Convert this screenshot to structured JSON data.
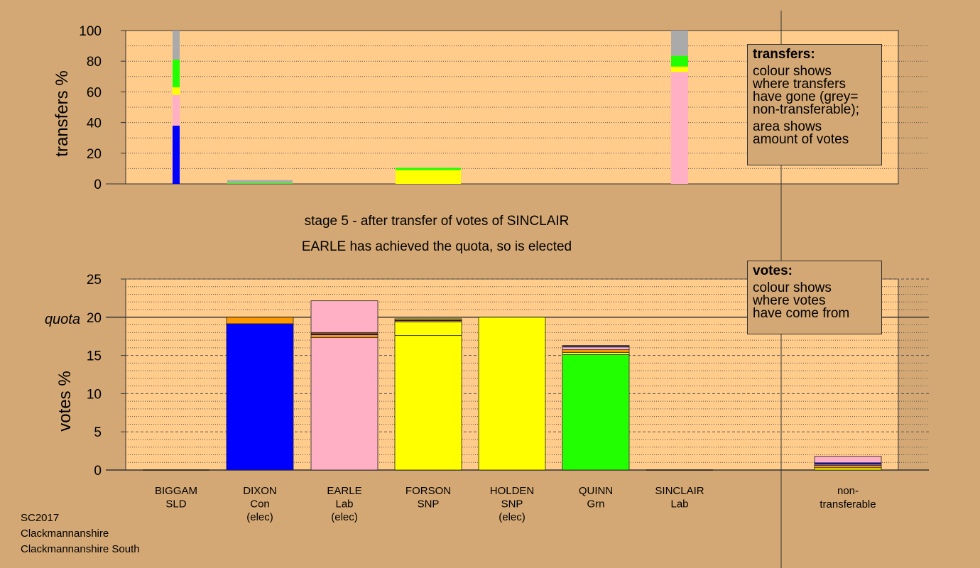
{
  "chart_data": [
    {
      "type": "bar",
      "stacked": true,
      "ylabel": "transfers %",
      "ylim": [
        0,
        100
      ],
      "yticks": [
        0,
        20,
        40,
        60,
        80,
        100
      ],
      "transfers": [
        {
          "candidate": "BIGGAM",
          "segments": [
            {
              "color": "#0000ff",
              "value": 38
            },
            {
              "color": "#ffb0c4",
              "value": 20
            },
            {
              "color": "#ffff00",
              "value": 5
            },
            {
              "color": "#22ff00",
              "value": 18
            },
            {
              "color": "#aaaaaa",
              "value": 19
            }
          ]
        },
        {
          "candidate": "DIXON",
          "segments": [
            {
              "color": "#22ff00",
              "value": 0.5
            },
            {
              "color": "#aaaaaa",
              "value": 2
            }
          ]
        },
        {
          "candidate": "FORSON",
          "segments": [
            {
              "color": "#ffff00",
              "value": 9
            },
            {
              "color": "#22ff00",
              "value": 1.5
            }
          ]
        },
        {
          "candidate": "SINCLAIR",
          "segments": [
            {
              "color": "#ffb0c4",
              "value": 73
            },
            {
              "color": "#ffff00",
              "value": 3.5
            },
            {
              "color": "#22ff00",
              "value": 7
            },
            {
              "color": "#aaaaaa",
              "value": 16.5
            }
          ]
        }
      ]
    },
    {
      "type": "bar",
      "stacked": true,
      "ylabel": "votes %",
      "ylim": [
        0,
        25
      ],
      "yticks": [
        0,
        5,
        10,
        15,
        20,
        25
      ],
      "quota": 20,
      "quota_label": "quota",
      "categories": [
        {
          "name": "BIGGAM",
          "party": "SLD",
          "status": ""
        },
        {
          "name": "DIXON",
          "party": "Con",
          "status": "(elec)"
        },
        {
          "name": "EARLE",
          "party": "Lab",
          "status": "(elec)"
        },
        {
          "name": "FORSON",
          "party": "SNP",
          "status": ""
        },
        {
          "name": "HOLDEN",
          "party": "SNP",
          "status": "(elec)"
        },
        {
          "name": "QUINN",
          "party": "Grn",
          "status": ""
        },
        {
          "name": "SINCLAIR",
          "party": "Lab",
          "status": ""
        }
      ],
      "votes": [
        {
          "candidate": "BIGGAM",
          "segments": []
        },
        {
          "candidate": "DIXON",
          "segments": [
            {
              "color": "#0000ff",
              "value": 19.15
            },
            {
              "color": "#ff9900",
              "value": 0.85
            }
          ]
        },
        {
          "candidate": "EARLE",
          "segments": [
            {
              "color": "#ffb0c4",
              "value": 17.35
            },
            {
              "color": "#ff9900",
              "value": 0.35
            },
            {
              "color": "#0000ff",
              "value": 0.15
            },
            {
              "color": "#ff9900",
              "value": 0.15
            },
            {
              "color": "#ffb0c4",
              "value": 4.15
            }
          ]
        },
        {
          "candidate": "FORSON",
          "segments": [
            {
              "color": "#ffff00",
              "value": 17.6
            },
            {
              "color": "#ffff00",
              "value": 1.8
            },
            {
              "color": "#ff9900",
              "value": 0.15
            },
            {
              "color": "#0000ff",
              "value": 0.1
            },
            {
              "color": "#ffff00",
              "value": 0.15
            }
          ]
        },
        {
          "candidate": "HOLDEN",
          "segments": [
            {
              "color": "#ffff00",
              "value": 20
            }
          ]
        },
        {
          "candidate": "QUINN",
          "segments": [
            {
              "color": "#22ff00",
              "value": 15.1
            },
            {
              "color": "#ffff00",
              "value": 0.3
            },
            {
              "color": "#ff9900",
              "value": 0.35
            },
            {
              "color": "#ffb0c4",
              "value": 0.35
            },
            {
              "color": "#0000ff",
              "value": 0.1
            },
            {
              "color": "#ffb0c4",
              "value": 0.1
            }
          ]
        },
        {
          "candidate": "SINCLAIR",
          "segments": []
        },
        {
          "candidate": "non-transferable",
          "segments": [
            {
              "color": "#ffff00",
              "value": 0.3
            },
            {
              "color": "#ff9900",
              "value": 0.3
            },
            {
              "color": "#ffb0c4",
              "value": 0.15
            },
            {
              "color": "#0000ff",
              "value": 0.2
            },
            {
              "color": "#ffb0c4",
              "value": 0.85
            }
          ]
        }
      ],
      "nontransferable_label_1": "non-",
      "nontransferable_label_2": "transferable"
    }
  ],
  "colors": {
    "background": "#d4a874",
    "plot_background": "#ffcc8c",
    "SLD": "#ff9900",
    "Con": "#0000ff",
    "Lab": "#ffb0c4",
    "SNP": "#ffff00",
    "Grn": "#22ff00",
    "non_transferable": "#aaaaaa"
  },
  "legend_transfers": {
    "title": "transfers:",
    "p1_l1": "colour shows",
    "p1_l2": "where transfers",
    "p1_l3": "have gone (grey=",
    "p1_l4": "non-transferable);",
    "p2_l1": "area shows",
    "p2_l2": "amount of votes"
  },
  "legend_votes": {
    "title": "votes:",
    "l1": "colour shows",
    "l2": "where votes",
    "l3": "have come from"
  },
  "stage_text": "stage 5 - after transfer of votes of SINCLAIR",
  "elected_text": "EARLE has achieved the quota, so is elected",
  "footer": {
    "line1": "SC2017",
    "line2": "Clackmannanshire",
    "line3": "Clackmannanshire South"
  }
}
